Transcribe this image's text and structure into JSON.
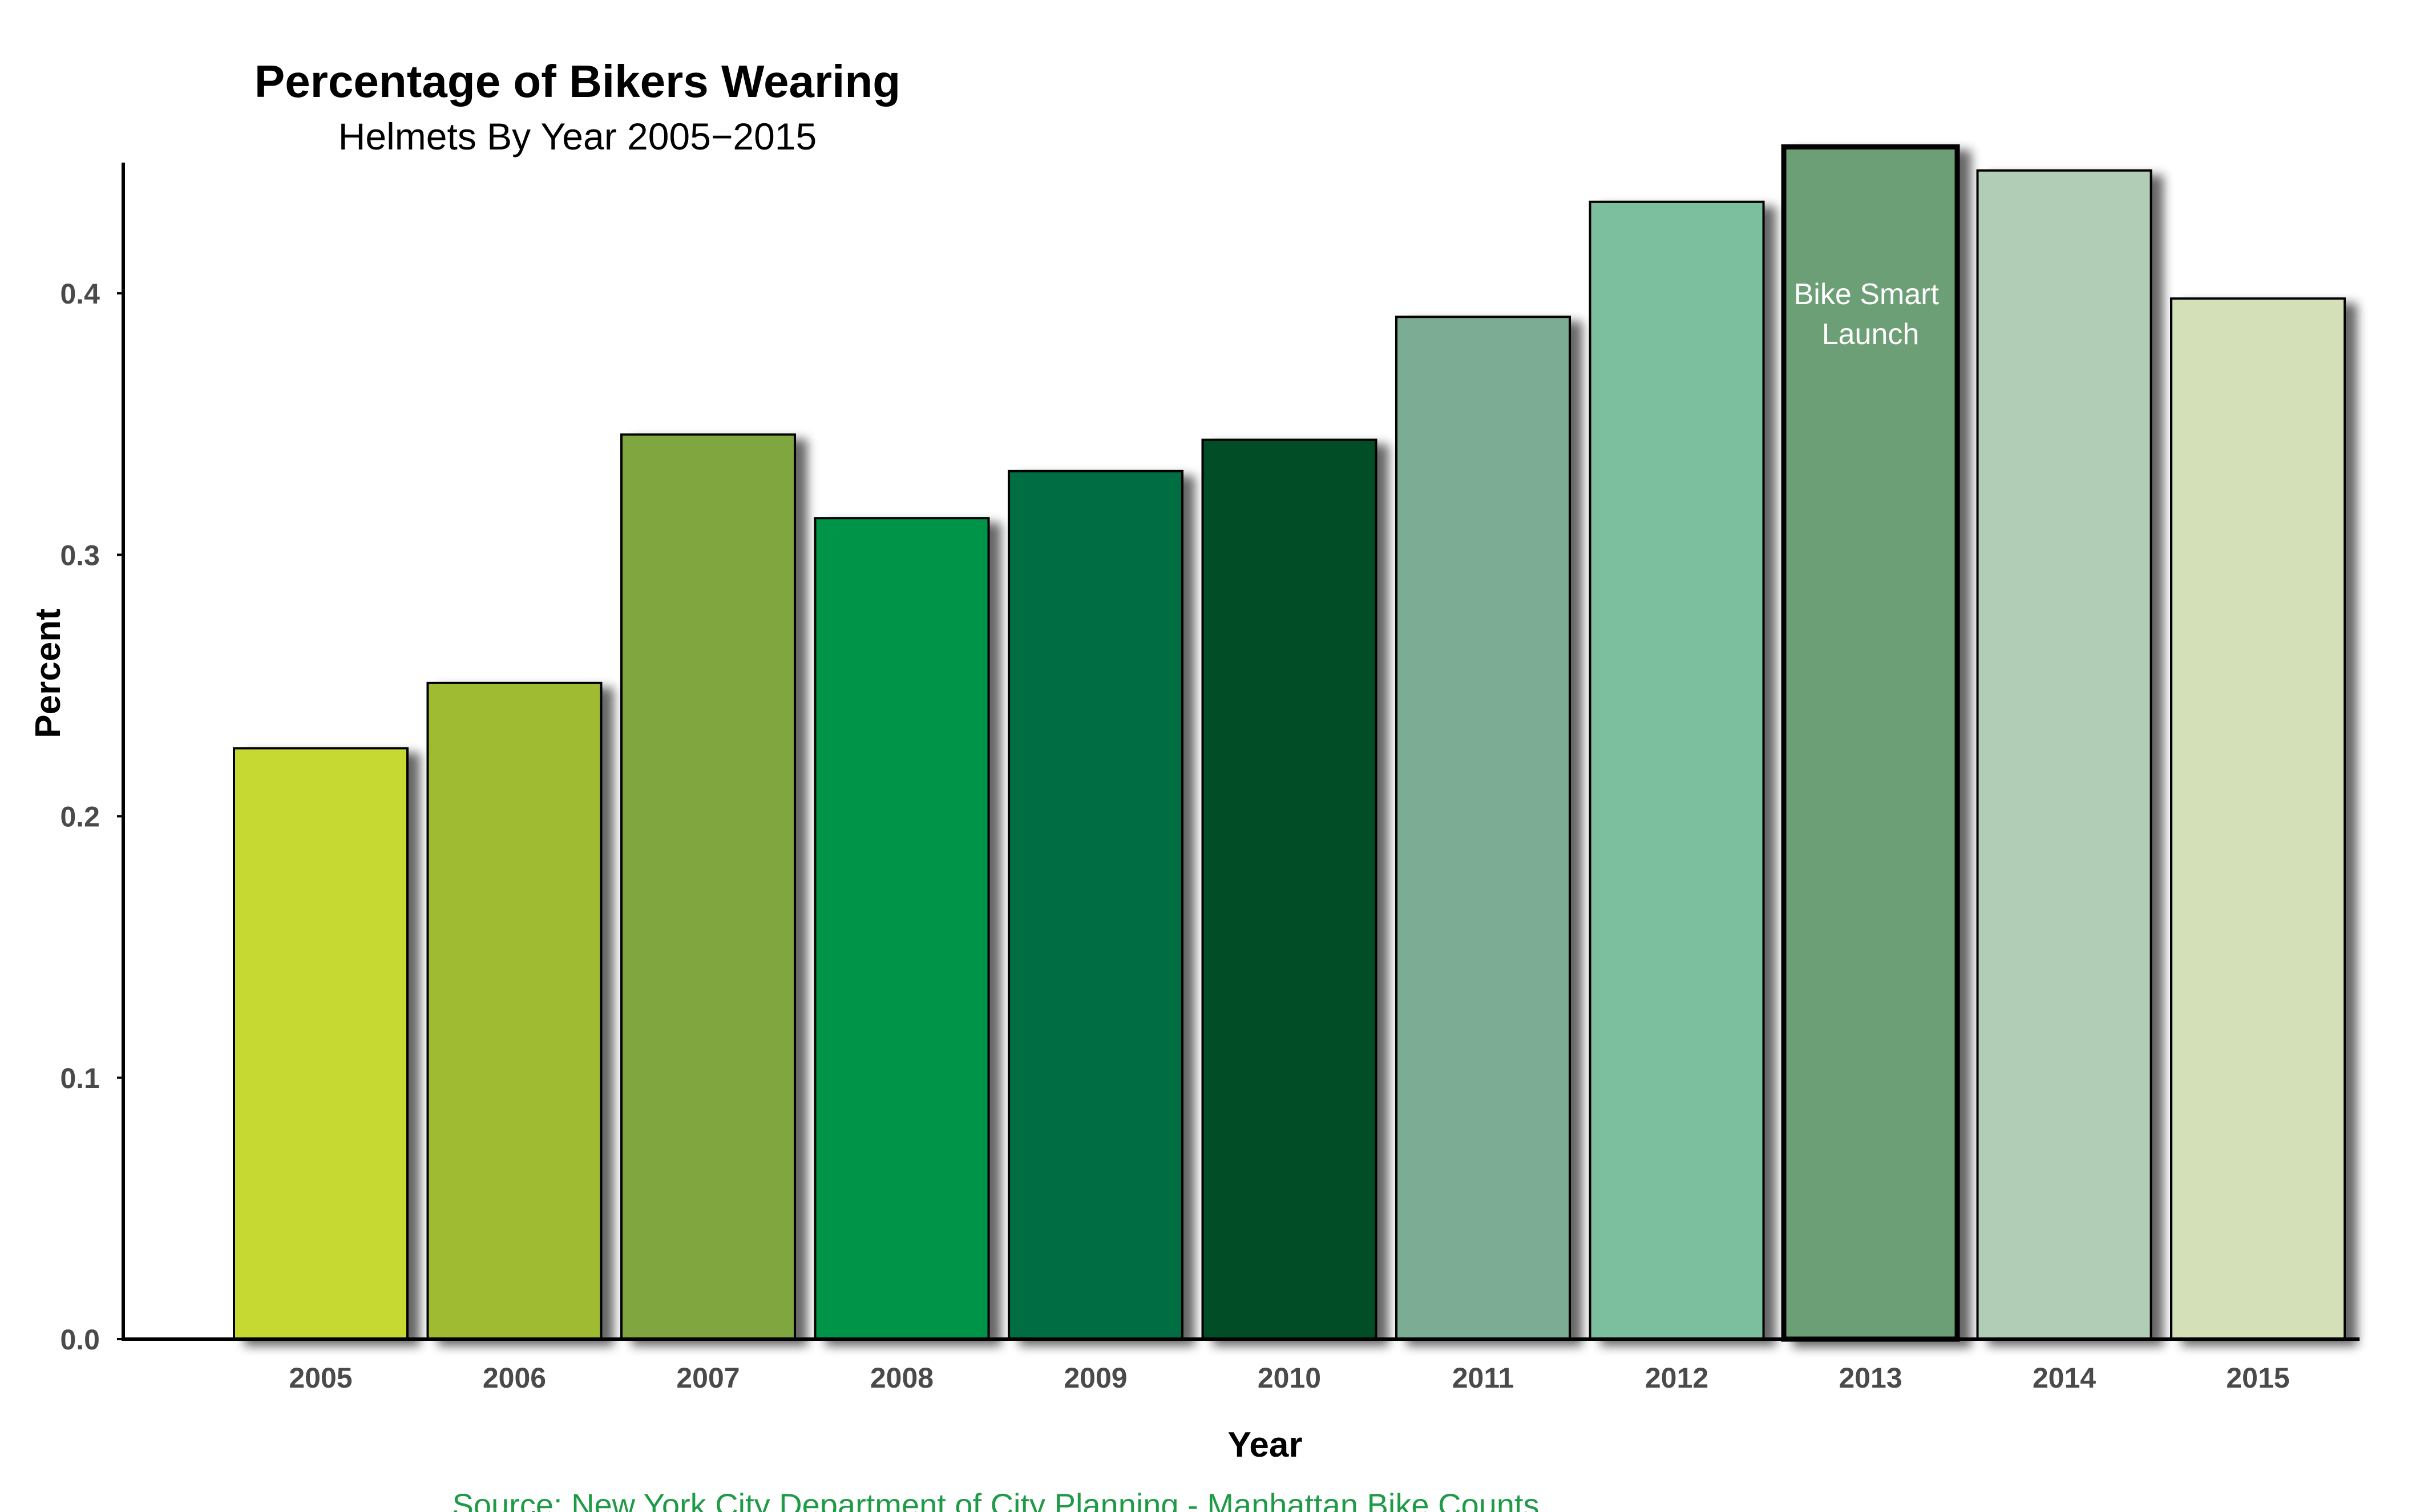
{
  "chart_data": {
    "type": "bar",
    "title": "Percentage of Bikers Wearing",
    "subtitle": "Helmets By Year 2005−2015",
    "xlabel": "Year",
    "ylabel": "Percent",
    "ylim": [
      0,
      0.45
    ],
    "yticks": [
      "0.0",
      "0.1",
      "0.2",
      "0.3",
      "0.4"
    ],
    "categories": [
      "2005",
      "2006",
      "2007",
      "2008",
      "2009",
      "2010",
      "2011",
      "2012",
      "2013",
      "2014",
      "2015"
    ],
    "values": [
      0.226,
      0.251,
      0.346,
      0.314,
      0.332,
      0.344,
      0.391,
      0.435,
      0.456,
      0.447,
      0.398
    ],
    "colors": [
      "#c5d930",
      "#9fbb30",
      "#80a63f",
      "#00944a",
      "#016e43",
      "#024d28",
      "#7bac93",
      "#7bbf9e",
      "#6d9f76",
      "#b2cdb5",
      "#d3e0b8"
    ],
    "highlight_index": 8,
    "annotation": [
      "Bike Smart",
      "Launch"
    ],
    "grid": false,
    "legend": "none",
    "source": "Source: New York City Department of  City Planning - Manhattan Bike Counts"
  }
}
